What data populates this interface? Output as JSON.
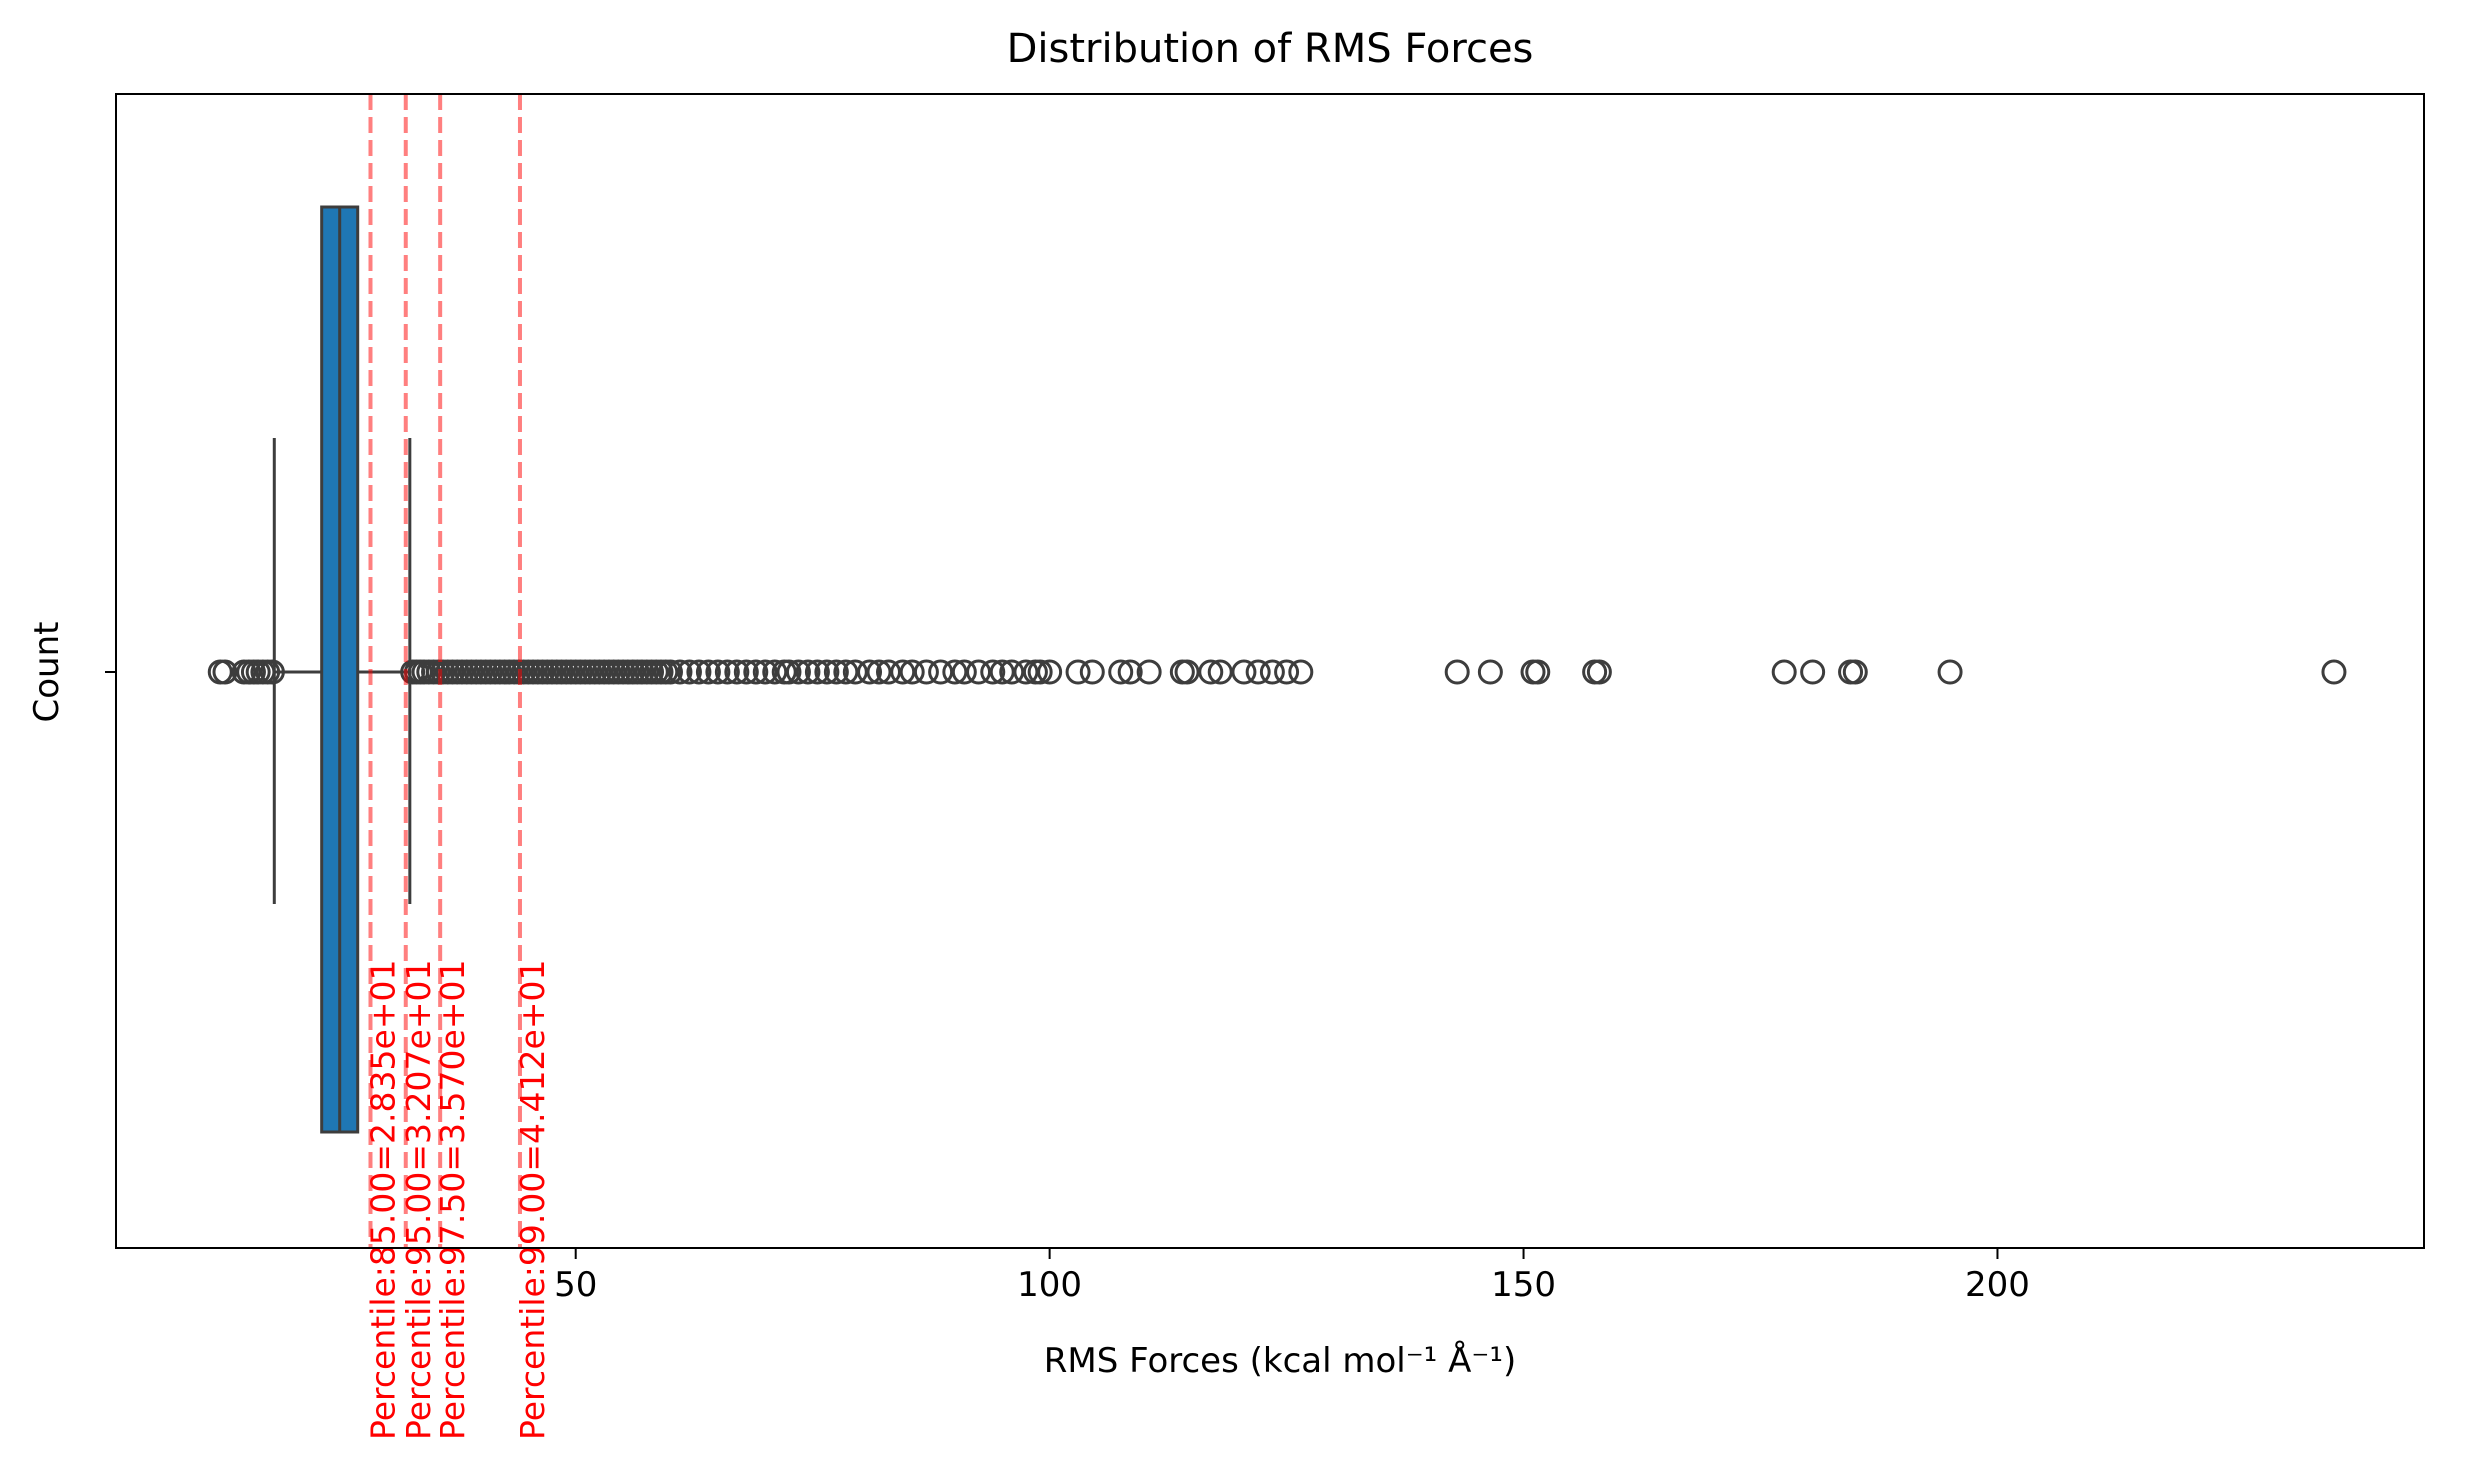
{
  "chart_data": {
    "type": "box",
    "title": "Distribution of RMS Forces",
    "xlabel": "RMS Forces (kcal mol⁻¹ Å⁻¹)",
    "ylabel": "Count",
    "orientation": "horizontal",
    "xlim": [
      1.5,
      245
    ],
    "xticks": [
      50,
      100,
      150,
      200
    ],
    "grid": false,
    "colors": {
      "box": "#1f77b4",
      "line": "#3d3d3d",
      "percentile": "#ff0000"
    },
    "box": {
      "whisker_low": 18.2,
      "q1": 23.2,
      "median": 25.1,
      "q3": 27.0,
      "whisker_high": 32.5
    },
    "outliers": [
      12.5,
      13.0,
      15.0,
      15.5,
      16.0,
      16.5,
      17.0,
      17.5,
      18.0,
      32.8,
      33.2,
      33.6,
      34.0,
      34.5,
      35.0,
      35.5,
      36.0,
      36.5,
      37.0,
      37.5,
      38.0,
      38.5,
      39.0,
      39.5,
      40.0,
      40.5,
      41.0,
      41.5,
      42.0,
      42.5,
      43.0,
      43.5,
      44.0,
      44.5,
      45.0,
      45.5,
      46.0,
      46.5,
      47.0,
      47.5,
      48.0,
      48.5,
      49.0,
      49.5,
      50.0,
      50.5,
      51.0,
      51.5,
      52.0,
      52.5,
      53.0,
      53.5,
      54.0,
      54.5,
      55.0,
      55.5,
      56.0,
      56.5,
      57.0,
      57.5,
      58.0,
      58.5,
      59.0,
      59.5,
      60.0,
      61.0,
      62.0,
      63.0,
      64.0,
      65.0,
      66.0,
      67.0,
      68.0,
      69.0,
      70.0,
      71.0,
      72.0,
      72.5,
      73.5,
      74.5,
      75.5,
      76.5,
      77.5,
      78.5,
      79.5,
      81.0,
      82.0,
      83.0,
      84.5,
      85.5,
      87.0,
      88.5,
      90.0,
      91.0,
      92.5,
      94.0,
      95.0,
      96.0,
      97.5,
      98.5,
      99.0,
      100.0,
      103.0,
      104.5,
      107.5,
      108.5,
      110.5,
      114.0,
      114.5,
      117.0,
      118.0,
      120.5,
      122.0,
      123.5,
      125.0,
      126.5,
      143.0,
      146.5,
      151.0,
      151.5,
      157.5,
      158.0,
      177.5,
      180.5,
      184.5,
      185.0,
      195.0,
      235.5
    ],
    "percentiles": [
      {
        "value": 28.35,
        "label": "Percentile:85.00=2.835e+01"
      },
      {
        "value": 32.07,
        "label": "Percentile:95.00=3.207e+01"
      },
      {
        "value": 35.7,
        "label": "Percentile:97.50=3.570e+01"
      },
      {
        "value": 44.12,
        "label": "Percentile:99.00=4.412e+01"
      }
    ]
  }
}
